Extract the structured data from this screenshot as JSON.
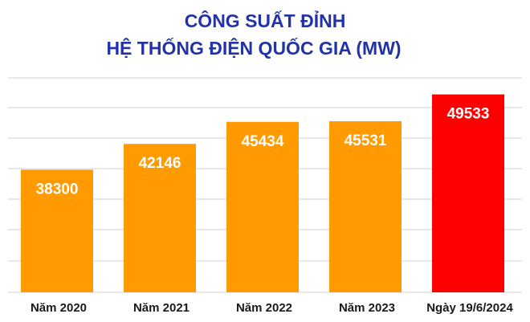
{
  "chart_data": {
    "type": "bar",
    "title_lines": [
      "CÔNG SUẤT ĐỈNH",
      "HỆ THỐNG ĐIỆN QUỐC GIA (MW)"
    ],
    "categories": [
      "Năm 2020",
      "Năm 2021",
      "Năm 2022",
      "Năm 2023",
      "Ngày 19/6/2024"
    ],
    "values": [
      38300,
      42146,
      45434,
      45531,
      49533
    ],
    "ylim": [
      20000,
      52000
    ],
    "grid": true,
    "legend": "none",
    "colors": {
      "bar": "#ff9a00",
      "highlight_bar": "#ff0000",
      "bar_label": "#ffffff",
      "title": "#2233a8",
      "grid": "#d0d0d0"
    },
    "highlight_index": 4
  }
}
